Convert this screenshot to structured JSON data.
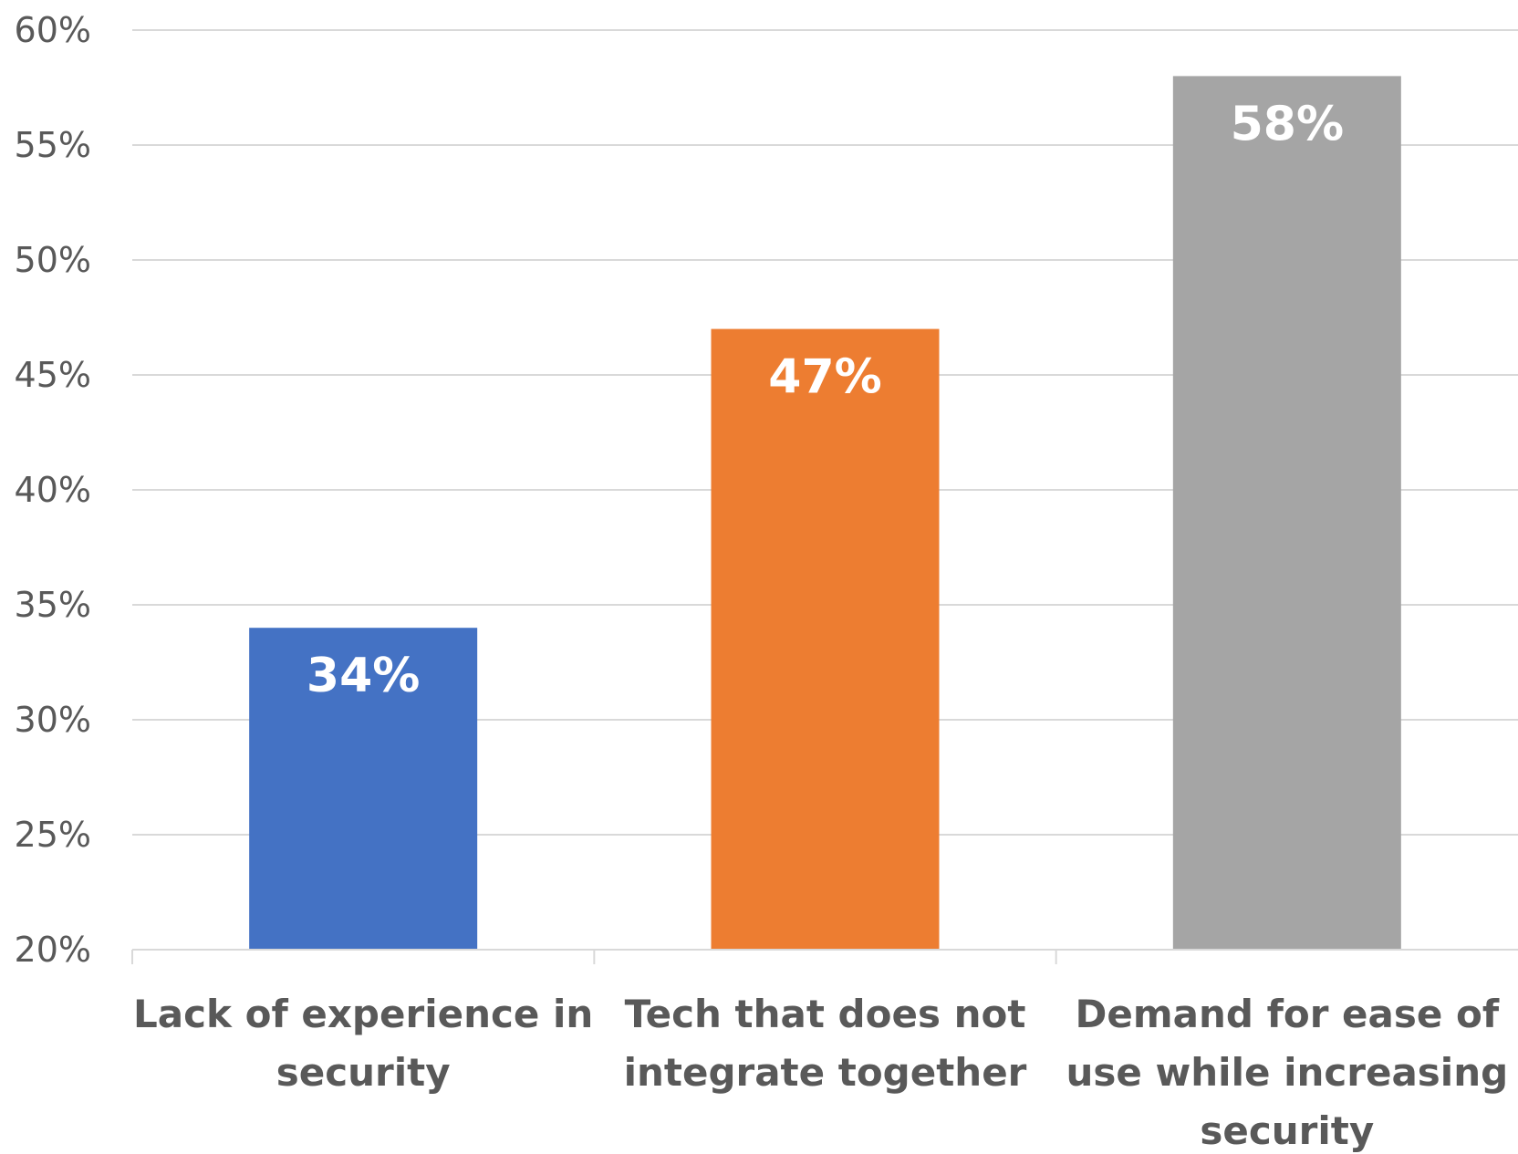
{
  "chart_data": {
    "type": "bar",
    "categories": [
      [
        "Lack of experience in",
        "security"
      ],
      [
        "Tech that does not",
        "integrate together"
      ],
      [
        "Demand for ease of",
        "use while increasing",
        "security"
      ]
    ],
    "values": [
      34,
      47,
      58
    ],
    "data_labels": [
      "34%",
      "47%",
      "58%"
    ],
    "colors": [
      "#4472c4",
      "#ed7d31",
      "#a5a5a5"
    ],
    "ylim": [
      20,
      60
    ],
    "yticks": [
      20,
      25,
      30,
      35,
      40,
      45,
      50,
      55,
      60
    ],
    "ytick_labels": [
      "20%",
      "25%",
      "30%",
      "35%",
      "40%",
      "45%",
      "50%",
      "55%",
      "60%"
    ],
    "grid": true,
    "title": "",
    "xlabel": "",
    "ylabel": ""
  }
}
